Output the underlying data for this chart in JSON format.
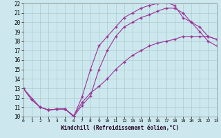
{
  "bg_color": "#cce8ee",
  "line_color": "#993399",
  "grid_color": "#aacccc",
  "xlim": [
    0,
    23
  ],
  "ylim": [
    10,
    22
  ],
  "xticks": [
    0,
    1,
    2,
    3,
    4,
    5,
    6,
    7,
    8,
    9,
    10,
    11,
    12,
    13,
    14,
    15,
    16,
    17,
    18,
    19,
    20,
    21,
    22,
    23
  ],
  "yticks": [
    10,
    11,
    12,
    13,
    14,
    15,
    16,
    17,
    18,
    19,
    20,
    21,
    22
  ],
  "xlabel": "Windchill (Refroidissement éolien,°C)",
  "line1_x": [
    0,
    1,
    2,
    3,
    4,
    5,
    6,
    7,
    8,
    9,
    10,
    11,
    12,
    13,
    14,
    15,
    16,
    17,
    18,
    19,
    20,
    21,
    22,
    23
  ],
  "line1_y": [
    13.0,
    11.8,
    11.0,
    10.7,
    10.8,
    10.8,
    10.0,
    12.1,
    15.0,
    17.5,
    18.5,
    19.5,
    20.5,
    21.0,
    21.5,
    21.8,
    22.0,
    22.1,
    21.8,
    20.5,
    20.0,
    19.5,
    18.5,
    18.2
  ],
  "line2_x": [
    0,
    1,
    2,
    3,
    4,
    5,
    6,
    7,
    8,
    9,
    10,
    11,
    12,
    13,
    14,
    15,
    16,
    17,
    18,
    19,
    20,
    21,
    22,
    23
  ],
  "line2_y": [
    13.0,
    11.8,
    11.0,
    10.7,
    10.8,
    10.8,
    10.0,
    11.2,
    12.2,
    15.0,
    17.0,
    18.5,
    19.5,
    20.0,
    20.5,
    20.8,
    21.2,
    21.5,
    21.5,
    21.0,
    20.0,
    19.0,
    18.0,
    17.5
  ],
  "line3_x": [
    0,
    2,
    3,
    4,
    5,
    6,
    7,
    8,
    9,
    10,
    11,
    12,
    13,
    14,
    15,
    16,
    17,
    18,
    19,
    20,
    21,
    22,
    23
  ],
  "line3_y": [
    13.0,
    11.0,
    10.7,
    10.8,
    10.8,
    10.1,
    11.5,
    12.5,
    13.2,
    14.0,
    15.0,
    15.8,
    16.5,
    17.0,
    17.5,
    17.8,
    18.0,
    18.2,
    18.5,
    18.5,
    18.5,
    18.5,
    18.2
  ]
}
